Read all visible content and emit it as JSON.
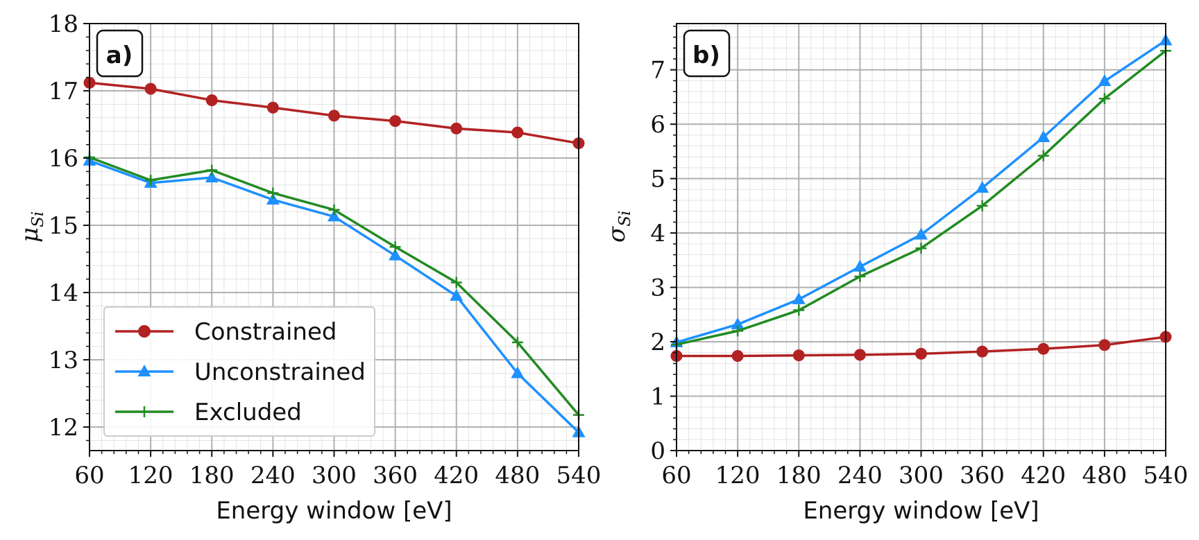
{
  "chart_data": [
    {
      "type": "line",
      "panel_label": "a)",
      "xlabel": "Energy window [eV]",
      "ylabel": {
        "main": "μ",
        "sub": "Si"
      },
      "x": [
        60,
        120,
        180,
        240,
        300,
        360,
        420,
        480,
        540
      ],
      "xticks": [
        "60",
        "120",
        "180",
        "240",
        "300",
        "360",
        "420",
        "480",
        "540"
      ],
      "xlim": [
        60,
        540
      ],
      "ylim": [
        11.65,
        18.0
      ],
      "yticks": [
        "12",
        "13",
        "14",
        "15",
        "16",
        "17",
        "18"
      ],
      "ytick_values": [
        12,
        13,
        14,
        15,
        16,
        17,
        18
      ],
      "grid": "on",
      "legend_position": "lower-left",
      "series": [
        {
          "name": "Constrained",
          "color": "#b22222",
          "marker": "circle",
          "values": [
            17.12,
            17.03,
            16.86,
            16.75,
            16.63,
            16.55,
            16.44,
            16.38,
            16.22
          ]
        },
        {
          "name": "Unconstrained",
          "color": "#1e90ff",
          "marker": "triangle",
          "values": [
            15.96,
            15.63,
            15.71,
            15.38,
            15.13,
            14.55,
            13.95,
            12.8,
            11.92
          ]
        },
        {
          "name": "Excluded",
          "color": "#228b22",
          "marker": "plus",
          "values": [
            16.01,
            15.67,
            15.82,
            15.48,
            15.23,
            14.68,
            14.15,
            13.26,
            12.18
          ]
        }
      ]
    },
    {
      "type": "line",
      "panel_label": "b)",
      "xlabel": "Energy window [eV]",
      "ylabel": {
        "main": "σ",
        "sub": "Si"
      },
      "x": [
        60,
        120,
        180,
        240,
        300,
        360,
        420,
        480,
        540
      ],
      "xticks": [
        "60",
        "120",
        "180",
        "240",
        "300",
        "360",
        "420",
        "480",
        "540"
      ],
      "xlim": [
        60,
        540
      ],
      "ylim": [
        0,
        7.85
      ],
      "yticks": [
        "0",
        "1",
        "2",
        "3",
        "4",
        "5",
        "6",
        "7"
      ],
      "ytick_values": [
        0,
        1,
        2,
        3,
        4,
        5,
        6,
        7
      ],
      "grid": "on",
      "series": [
        {
          "name": "Constrained",
          "color": "#b22222",
          "marker": "circle",
          "values": [
            1.74,
            1.74,
            1.75,
            1.76,
            1.78,
            1.82,
            1.87,
            1.94,
            2.09
          ]
        },
        {
          "name": "Unconstrained",
          "color": "#1e90ff",
          "marker": "triangle",
          "values": [
            1.99,
            2.32,
            2.78,
            3.38,
            3.97,
            4.83,
            5.76,
            6.79,
            7.54
          ]
        },
        {
          "name": "Excluded",
          "color": "#228b22",
          "marker": "plus",
          "values": [
            1.95,
            2.2,
            2.58,
            3.2,
            3.72,
            4.5,
            5.42,
            6.47,
            7.35
          ]
        }
      ]
    }
  ]
}
